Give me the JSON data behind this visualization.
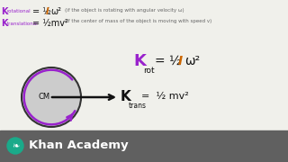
{
  "bg_color": "#f0f0eb",
  "footer_color": "#606060",
  "circle_fill": "#cccccc",
  "circle_edge": "#333333",
  "purple": "#9922cc",
  "orange": "#cc6600",
  "black": "#111111",
  "gray_note": "#666666",
  "white": "#ffffff",
  "teal": "#1aaa8a",
  "line1_note": "(if the object is rotating with angular velocity ω)",
  "line2_note": "(if the center of mass of the object is moving with speed v)",
  "khan_text": "Khan Academy"
}
